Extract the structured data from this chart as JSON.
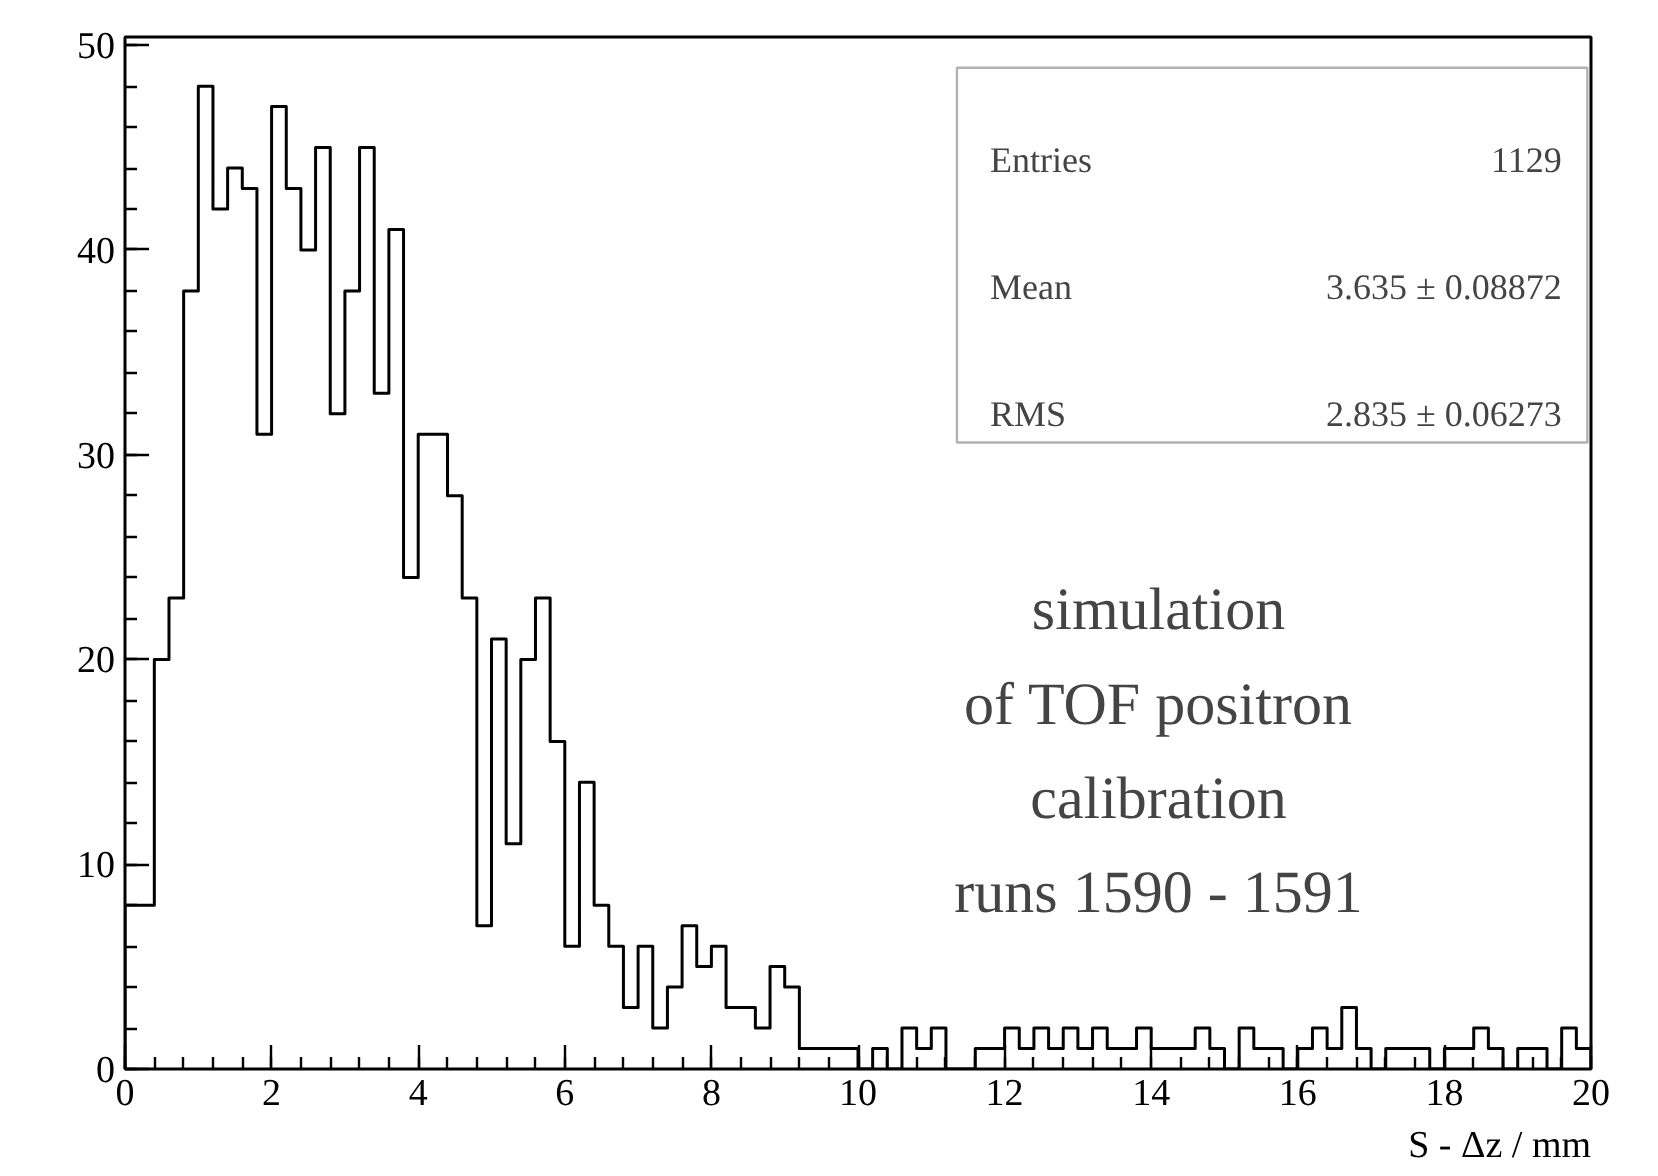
{
  "chart_data": {
    "type": "histogram",
    "xlabel": "S - Δz / mm",
    "bins": [
      0,
      0.2,
      0.4,
      0.6,
      0.8,
      1,
      1.2,
      1.4,
      1.6,
      1.8,
      2,
      2.2,
      2.4,
      2.6,
      2.8,
      3,
      3.2,
      3.4,
      3.6,
      3.8,
      4,
      4.2,
      4.4,
      4.6,
      4.8,
      5,
      5.2,
      5.4,
      5.6,
      5.8,
      6,
      6.2,
      6.4,
      6.6,
      6.8,
      7,
      7.2,
      7.4,
      7.6,
      7.8,
      8,
      8.2,
      8.4,
      8.6,
      8.8,
      9,
      9.2,
      9.4,
      9.6,
      9.8,
      10,
      10.2,
      10.4,
      10.6,
      10.8,
      11,
      11.2,
      11.4,
      11.6,
      11.8,
      12,
      12.2,
      12.4,
      12.6,
      12.8,
      13,
      13.2,
      13.4,
      13.6,
      13.8,
      14,
      14.2,
      14.4,
      14.6,
      14.8,
      15,
      15.2,
      15.4,
      15.6,
      15.8,
      16,
      16.2,
      16.4,
      16.6,
      16.8,
      17,
      17.2,
      17.4,
      17.6,
      17.8,
      18,
      18.2,
      18.4,
      18.6,
      18.8,
      19,
      19.2,
      19.4,
      19.6,
      19.8,
      20
    ],
    "values": [
      8,
      8,
      20,
      23,
      38,
      48,
      42,
      44,
      43,
      31,
      47,
      43,
      40,
      45,
      32,
      38,
      45,
      33,
      41,
      24,
      31,
      31,
      28,
      23,
      7,
      21,
      11,
      20,
      23,
      16,
      6,
      14,
      8,
      6,
      3,
      6,
      2,
      4,
      7,
      5,
      6,
      3,
      3,
      2,
      5,
      4,
      1,
      1,
      1,
      1,
      0,
      1,
      0,
      2,
      1,
      2,
      0,
      0,
      1,
      1,
      2,
      1,
      2,
      1,
      2,
      1,
      2,
      1,
      1,
      2,
      1,
      1,
      1,
      2,
      1,
      0,
      2,
      1,
      1,
      0,
      1,
      2,
      1,
      3,
      1,
      0,
      1,
      1,
      1,
      0,
      1,
      1,
      2,
      1,
      0,
      1,
      1,
      0,
      2,
      1
    ],
    "color": "#000000",
    "xlim": [
      0,
      20
    ],
    "ylim": [
      0,
      50.4
    ],
    "xticks": [
      0,
      2,
      4,
      6,
      8,
      10,
      12,
      14,
      16,
      18,
      20
    ],
    "yticks": [
      0,
      10,
      20,
      30,
      40,
      50
    ],
    "grid": false,
    "annotations": [
      "Entries 1129",
      "Mean 3.635 ± 0.08872",
      "RMS 2.835 ± 0.06273",
      "simulation",
      "of TOF positron",
      "calibration",
      "runs 1590 - 1591"
    ]
  }
}
